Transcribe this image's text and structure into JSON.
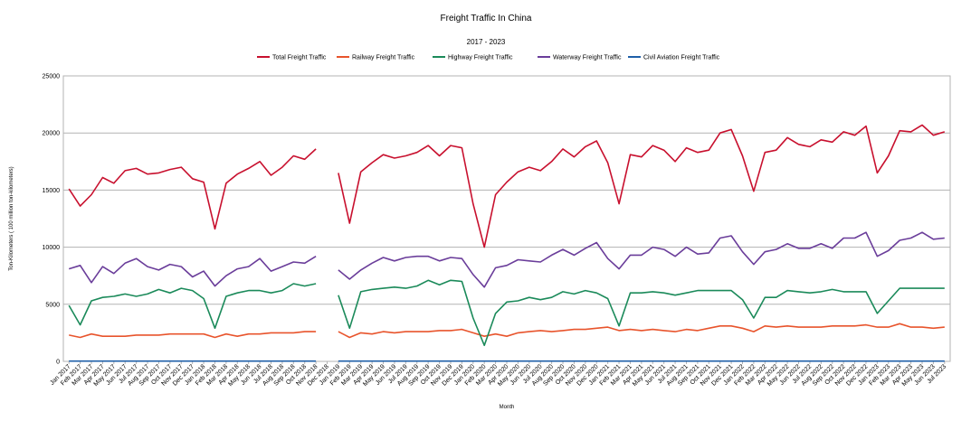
{
  "chart_data": {
    "type": "line",
    "title": "Freight Traffic In China",
    "subtitle": "2017 - 2023",
    "xlabel": "Month",
    "ylabel": "Ton-Kilometers ( 100 million ton-kilometers)",
    "ylim": [
      0,
      25000
    ],
    "yticks": [
      "0",
      "5000",
      "10000",
      "15000",
      "20000",
      "25000"
    ],
    "grid": true,
    "legend_position": "top",
    "categories": [
      "Jan 2017",
      "Feb 2017",
      "Mar 2017",
      "Apr 2017",
      "May 2017",
      "Jun 2017",
      "Jul 2017",
      "Aug 2017",
      "Sep 2017",
      "Oct 2017",
      "Nov 2017",
      "Dec 2017",
      "Jan 2018",
      "Feb 2018",
      "Mar 2018",
      "Apr 2018",
      "May 2018",
      "Jun 2018",
      "Jul 2018",
      "Aug 2018",
      "Sep 2018",
      "Oct 2018",
      "Nov 2018",
      "Dec 2018",
      "Jan 2019",
      "Feb 2019",
      "Mar 2019",
      "Apr 2019",
      "May 2019",
      "Jun 2019",
      "Jul 2019",
      "Aug 2019",
      "Sep 2019",
      "Oct 2019",
      "Nov 2019",
      "Dec 2019",
      "Jan 2020",
      "Feb 2020",
      "Mar 2020",
      "Apr 2020",
      "May 2020",
      "Jun 2020",
      "Jul 2020",
      "Aug 2020",
      "Sep 2020",
      "Oct 2020",
      "Nov 2020",
      "Dec 2020",
      "Jan 2021",
      "Feb 2021",
      "Mar 2021",
      "Apr 2021",
      "May 2021",
      "Jun 2021",
      "Jul 2021",
      "Aug 2021",
      "Sep 2021",
      "Oct 2021",
      "Nov 2021",
      "Dec 2021",
      "Jan 2022",
      "Feb 2022",
      "Mar 2022",
      "Apr 2022",
      "May 2022",
      "Jun 2022",
      "Jul 2022",
      "Aug 2022",
      "Sep 2022",
      "Oct 2022",
      "Nov 2022",
      "Dec 2022",
      "Jan 2023",
      "Feb 2023",
      "Mar 2023",
      "Apr 2023",
      "May 2023",
      "Jun 2023",
      "Jul 2023"
    ],
    "series": [
      {
        "name": "Total Freight Traffic",
        "color": "#c8102e",
        "values": [
          15100,
          13600,
          14600,
          16100,
          15600,
          16700,
          16900,
          16400,
          16500,
          16800,
          17000,
          16000,
          15700,
          11600,
          15600,
          16400,
          16900,
          17500,
          16300,
          17000,
          18000,
          17700,
          18600,
          null,
          16500,
          12100,
          16600,
          17400,
          18100,
          17800,
          18000,
          18300,
          18900,
          18000,
          18900,
          18700,
          13800,
          10000,
          14600,
          15700,
          16600,
          17000,
          16700,
          17500,
          18600,
          17900,
          18800,
          19300,
          17400,
          13800,
          18100,
          17900,
          18900,
          18500,
          17500,
          18700,
          18300,
          18500,
          20000,
          20300,
          18000,
          14900,
          18300,
          18500,
          19600,
          19000,
          18800,
          19400,
          19200,
          20100,
          19800,
          20600,
          16500,
          18000,
          20200,
          20100,
          20700,
          19800,
          20100
        ]
      },
      {
        "name": "Railway Freight Traffic",
        "color": "#e8542c",
        "values": [
          2300,
          2100,
          2400,
          2200,
          2200,
          2200,
          2300,
          2300,
          2300,
          2400,
          2400,
          2400,
          2400,
          2100,
          2400,
          2200,
          2400,
          2400,
          2500,
          2500,
          2500,
          2600,
          2600,
          null,
          2600,
          2100,
          2500,
          2400,
          2600,
          2500,
          2600,
          2600,
          2600,
          2700,
          2700,
          2800,
          2500,
          2200,
          2400,
          2200,
          2500,
          2600,
          2700,
          2600,
          2700,
          2800,
          2800,
          2900,
          3000,
          2700,
          2800,
          2700,
          2800,
          2700,
          2600,
          2800,
          2700,
          2900,
          3100,
          3100,
          2900,
          2600,
          3100,
          3000,
          3100,
          3000,
          3000,
          3000,
          3100,
          3100,
          3100,
          3200,
          3000,
          3000,
          3300,
          3000,
          3000,
          2900,
          3000
        ]
      },
      {
        "name": "Highway Freight Traffic",
        "color": "#1b8a5a",
        "values": [
          4900,
          3200,
          5300,
          5600,
          5700,
          5900,
          5700,
          5900,
          6300,
          6000,
          6400,
          6200,
          5500,
          2900,
          5700,
          6000,
          6200,
          6200,
          6000,
          6200,
          6800,
          6600,
          6800,
          null,
          5800,
          2900,
          6100,
          6300,
          6400,
          6500,
          6400,
          6600,
          7100,
          6700,
          7100,
          7000,
          3800,
          1400,
          4200,
          5200,
          5300,
          5600,
          5400,
          5600,
          6100,
          5900,
          6200,
          6000,
          5500,
          3100,
          6000,
          6000,
          6100,
          6000,
          5800,
          6000,
          6200,
          6200,
          6200,
          6200,
          5400,
          3800,
          5600,
          5600,
          6200,
          6100,
          6000,
          6100,
          6300,
          6100,
          6100,
          6100,
          4200,
          5300,
          6400,
          6400,
          6400,
          6400,
          6400
        ]
      },
      {
        "name": "Waterway Freight Traffic",
        "color": "#6a3d9a",
        "values": [
          8100,
          8400,
          6900,
          8300,
          7700,
          8600,
          9000,
          8300,
          8000,
          8500,
          8300,
          7400,
          7900,
          6600,
          7500,
          8100,
          8300,
          9000,
          7900,
          8300,
          8700,
          8600,
          9200,
          null,
          8000,
          7200,
          8000,
          8600,
          9100,
          8800,
          9100,
          9200,
          9200,
          8800,
          9100,
          9000,
          7600,
          6500,
          8200,
          8400,
          8900,
          8800,
          8700,
          9300,
          9800,
          9300,
          9900,
          10400,
          9000,
          8100,
          9300,
          9300,
          10000,
          9800,
          9200,
          10000,
          9400,
          9500,
          10800,
          11000,
          9600,
          8500,
          9600,
          9800,
          10300,
          9900,
          9900,
          10300,
          9900,
          10800,
          10800,
          11300,
          9200,
          9700,
          10600,
          10800,
          11300,
          10700,
          10800
        ]
      },
      {
        "name": "Civil Aviation Freight Traffic",
        "color": "#1f5fa8",
        "values": [
          20,
          20,
          20,
          20,
          20,
          20,
          20,
          20,
          20,
          20,
          20,
          20,
          20,
          20,
          20,
          20,
          20,
          20,
          20,
          20,
          20,
          20,
          20,
          null,
          20,
          20,
          20,
          20,
          20,
          20,
          20,
          20,
          20,
          20,
          20,
          20,
          20,
          20,
          20,
          20,
          20,
          20,
          20,
          20,
          20,
          20,
          20,
          20,
          20,
          20,
          20,
          20,
          20,
          20,
          20,
          20,
          20,
          20,
          20,
          20,
          20,
          20,
          20,
          20,
          20,
          20,
          20,
          20,
          20,
          20,
          20,
          20,
          20,
          20,
          20,
          20,
          20,
          20,
          20
        ]
      }
    ]
  }
}
